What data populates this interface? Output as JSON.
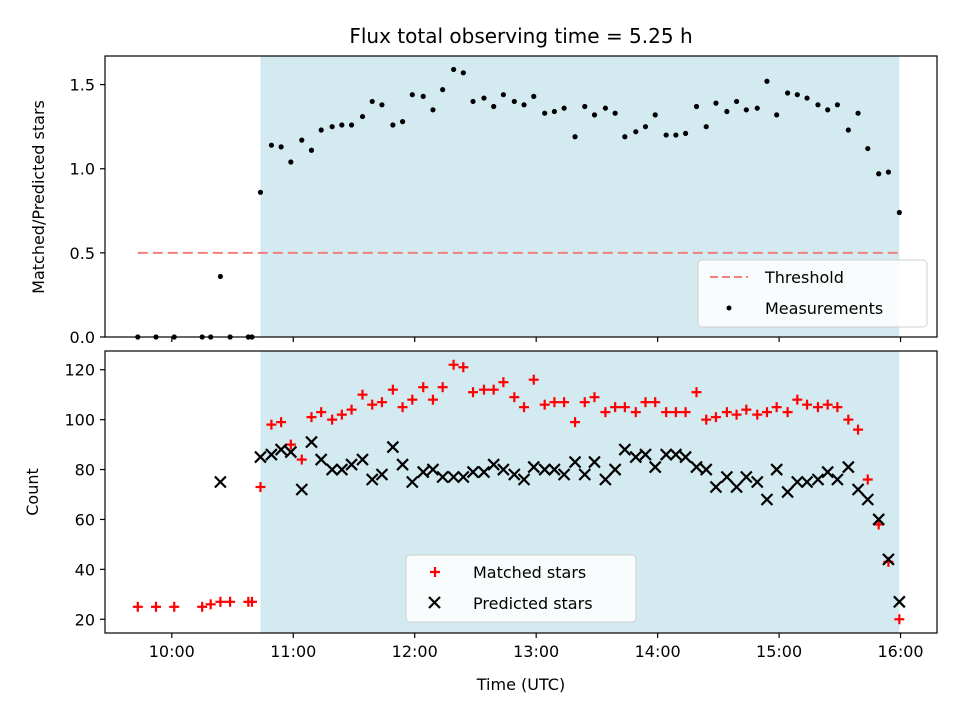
{
  "chart_data": [
    {
      "type": "scatter",
      "title": "Flux total observing time = 5.25 h",
      "ylabel": "Matched/Predicted stars",
      "xlabel": "",
      "x_unit": "hours UTC",
      "xlim": [
        9.45,
        16.3
      ],
      "ylim": [
        0,
        1.67
      ],
      "y_ticks": [
        0.0,
        0.5,
        1.0,
        1.5
      ],
      "y_tick_labels": [
        "0.0",
        "0.5",
        "1.0",
        "1.5"
      ],
      "x_ticks": [
        10,
        11,
        12,
        13,
        14,
        15,
        16
      ],
      "grid": false,
      "legend_position": "lower-right",
      "observing_window": {
        "start": 10.73,
        "end": 15.99,
        "color": "#d3eaf1"
      },
      "threshold": {
        "name": "Threshold",
        "value": 0.5,
        "x_range": [
          9.72,
          15.99
        ],
        "color": "#f08080",
        "style": "dashed"
      },
      "series": [
        {
          "name": "Measurements",
          "color": "#000000",
          "marker": "dot",
          "points": [
            [
              9.72,
              0.0
            ],
            [
              9.87,
              0.0
            ],
            [
              10.02,
              0.0
            ],
            [
              10.25,
              0.0
            ],
            [
              10.32,
              0.0
            ],
            [
              10.4,
              0.36
            ],
            [
              10.48,
              0.0
            ],
            [
              10.63,
              0.0
            ],
            [
              10.66,
              0.0
            ],
            [
              10.73,
              0.86
            ],
            [
              10.82,
              1.14
            ],
            [
              10.9,
              1.13
            ],
            [
              10.98,
              1.04
            ],
            [
              11.07,
              1.17
            ],
            [
              11.15,
              1.11
            ],
            [
              11.23,
              1.23
            ],
            [
              11.32,
              1.25
            ],
            [
              11.4,
              1.26
            ],
            [
              11.48,
              1.26
            ],
            [
              11.57,
              1.31
            ],
            [
              11.65,
              1.4
            ],
            [
              11.73,
              1.38
            ],
            [
              11.82,
              1.26
            ],
            [
              11.9,
              1.28
            ],
            [
              11.98,
              1.44
            ],
            [
              12.07,
              1.43
            ],
            [
              12.15,
              1.35
            ],
            [
              12.23,
              1.47
            ],
            [
              12.32,
              1.59
            ],
            [
              12.4,
              1.57
            ],
            [
              12.48,
              1.4
            ],
            [
              12.57,
              1.42
            ],
            [
              12.65,
              1.37
            ],
            [
              12.73,
              1.44
            ],
            [
              12.82,
              1.4
            ],
            [
              12.9,
              1.38
            ],
            [
              12.98,
              1.43
            ],
            [
              13.07,
              1.33
            ],
            [
              13.15,
              1.34
            ],
            [
              13.23,
              1.36
            ],
            [
              13.32,
              1.19
            ],
            [
              13.4,
              1.37
            ],
            [
              13.48,
              1.32
            ],
            [
              13.57,
              1.36
            ],
            [
              13.65,
              1.33
            ],
            [
              13.73,
              1.19
            ],
            [
              13.82,
              1.22
            ],
            [
              13.9,
              1.25
            ],
            [
              13.98,
              1.32
            ],
            [
              14.07,
              1.2
            ],
            [
              14.15,
              1.2
            ],
            [
              14.23,
              1.21
            ],
            [
              14.32,
              1.37
            ],
            [
              14.4,
              1.25
            ],
            [
              14.48,
              1.39
            ],
            [
              14.57,
              1.34
            ],
            [
              14.65,
              1.4
            ],
            [
              14.73,
              1.35
            ],
            [
              14.82,
              1.36
            ],
            [
              14.9,
              1.52
            ],
            [
              14.98,
              1.32
            ],
            [
              15.07,
              1.45
            ],
            [
              15.15,
              1.44
            ],
            [
              15.23,
              1.42
            ],
            [
              15.32,
              1.38
            ],
            [
              15.4,
              1.35
            ],
            [
              15.48,
              1.38
            ],
            [
              15.57,
              1.23
            ],
            [
              15.65,
              1.33
            ],
            [
              15.73,
              1.12
            ],
            [
              15.82,
              0.97
            ],
            [
              15.9,
              0.98
            ],
            [
              15.99,
              0.74
            ]
          ]
        }
      ]
    },
    {
      "type": "scatter",
      "title": "",
      "ylabel": "Count",
      "xlabel": "Time (UTC)",
      "x_unit": "hours UTC",
      "xlim": [
        9.45,
        16.3
      ],
      "ylim": [
        14.5,
        127.5
      ],
      "y_ticks": [
        20,
        40,
        60,
        80,
        100,
        120
      ],
      "y_tick_labels": [
        "20",
        "40",
        "60",
        "80",
        "100",
        "120"
      ],
      "x_ticks": [
        10,
        11,
        12,
        13,
        14,
        15,
        16
      ],
      "x_tick_labels": [
        "10:00",
        "11:00",
        "12:00",
        "13:00",
        "14:00",
        "15:00",
        "16:00"
      ],
      "grid": false,
      "legend_position": "lower-center",
      "observing_window": {
        "start": 10.73,
        "end": 15.99,
        "color": "#d3eaf1"
      },
      "series": [
        {
          "name": "Matched stars",
          "color": "#ff0000",
          "marker": "plus",
          "points": [
            [
              9.72,
              25
            ],
            [
              9.87,
              25
            ],
            [
              10.02,
              25
            ],
            [
              10.25,
              25
            ],
            [
              10.32,
              26
            ],
            [
              10.4,
              27
            ],
            [
              10.48,
              27
            ],
            [
              10.63,
              27
            ],
            [
              10.66,
              27
            ],
            [
              10.73,
              73
            ],
            [
              10.82,
              98
            ],
            [
              10.9,
              99
            ],
            [
              10.98,
              90
            ],
            [
              11.07,
              84
            ],
            [
              11.15,
              101
            ],
            [
              11.23,
              103
            ],
            [
              11.32,
              100
            ],
            [
              11.4,
              102
            ],
            [
              11.48,
              104
            ],
            [
              11.57,
              110
            ],
            [
              11.65,
              106
            ],
            [
              11.73,
              107
            ],
            [
              11.82,
              112
            ],
            [
              11.9,
              105
            ],
            [
              11.98,
              108
            ],
            [
              12.07,
              113
            ],
            [
              12.15,
              108
            ],
            [
              12.23,
              113
            ],
            [
              12.32,
              122
            ],
            [
              12.4,
              121
            ],
            [
              12.48,
              111
            ],
            [
              12.57,
              112
            ],
            [
              12.65,
              112
            ],
            [
              12.73,
              115
            ],
            [
              12.82,
              109
            ],
            [
              12.9,
              105
            ],
            [
              12.98,
              116
            ],
            [
              13.07,
              106
            ],
            [
              13.15,
              107
            ],
            [
              13.23,
              107
            ],
            [
              13.32,
              99
            ],
            [
              13.4,
              107
            ],
            [
              13.48,
              109
            ],
            [
              13.57,
              103
            ],
            [
              13.65,
              105
            ],
            [
              13.73,
              105
            ],
            [
              13.82,
              103
            ],
            [
              13.9,
              107
            ],
            [
              13.98,
              107
            ],
            [
              14.07,
              103
            ],
            [
              14.15,
              103
            ],
            [
              14.23,
              103
            ],
            [
              14.32,
              111
            ],
            [
              14.4,
              100
            ],
            [
              14.48,
              101
            ],
            [
              14.57,
              103
            ],
            [
              14.65,
              102
            ],
            [
              14.73,
              104
            ],
            [
              14.82,
              102
            ],
            [
              14.9,
              103
            ],
            [
              14.98,
              105
            ],
            [
              15.07,
              103
            ],
            [
              15.15,
              108
            ],
            [
              15.23,
              106
            ],
            [
              15.32,
              105
            ],
            [
              15.4,
              106
            ],
            [
              15.48,
              105
            ],
            [
              15.57,
              100
            ],
            [
              15.65,
              96
            ],
            [
              15.73,
              76
            ],
            [
              15.82,
              58
            ],
            [
              15.9,
              43
            ],
            [
              15.99,
              20
            ]
          ]
        },
        {
          "name": "Predicted stars",
          "color": "#000000",
          "marker": "cross",
          "points": [
            [
              10.4,
              75
            ],
            [
              10.73,
              85
            ],
            [
              10.82,
              86
            ],
            [
              10.9,
              88
            ],
            [
              10.98,
              87
            ],
            [
              11.07,
              72
            ],
            [
              11.15,
              91
            ],
            [
              11.23,
              84
            ],
            [
              11.32,
              80
            ],
            [
              11.4,
              80
            ],
            [
              11.48,
              82
            ],
            [
              11.57,
              84
            ],
            [
              11.65,
              76
            ],
            [
              11.73,
              78
            ],
            [
              11.82,
              89
            ],
            [
              11.9,
              82
            ],
            [
              11.98,
              75
            ],
            [
              12.07,
              79
            ],
            [
              12.15,
              80
            ],
            [
              12.23,
              77
            ],
            [
              12.32,
              77
            ],
            [
              12.4,
              77
            ],
            [
              12.48,
              79
            ],
            [
              12.57,
              79
            ],
            [
              12.65,
              82
            ],
            [
              12.73,
              80
            ],
            [
              12.82,
              78
            ],
            [
              12.9,
              76
            ],
            [
              12.98,
              81
            ],
            [
              13.07,
              80
            ],
            [
              13.15,
              80
            ],
            [
              13.23,
              78
            ],
            [
              13.32,
              83
            ],
            [
              13.4,
              78
            ],
            [
              13.48,
              83
            ],
            [
              13.57,
              76
            ],
            [
              13.65,
              80
            ],
            [
              13.73,
              88
            ],
            [
              13.82,
              85
            ],
            [
              13.9,
              86
            ],
            [
              13.98,
              81
            ],
            [
              14.07,
              86
            ],
            [
              14.15,
              86
            ],
            [
              14.23,
              85
            ],
            [
              14.32,
              81
            ],
            [
              14.4,
              80
            ],
            [
              14.48,
              73
            ],
            [
              14.57,
              77
            ],
            [
              14.65,
              73
            ],
            [
              14.73,
              77
            ],
            [
              14.82,
              75
            ],
            [
              14.9,
              68
            ],
            [
              14.98,
              80
            ],
            [
              15.07,
              71
            ],
            [
              15.15,
              75
            ],
            [
              15.23,
              75
            ],
            [
              15.32,
              76
            ],
            [
              15.4,
              79
            ],
            [
              15.48,
              76
            ],
            [
              15.57,
              81
            ],
            [
              15.65,
              72
            ],
            [
              15.73,
              68
            ],
            [
              15.82,
              60
            ],
            [
              15.9,
              44
            ],
            [
              15.99,
              27
            ]
          ]
        }
      ]
    }
  ]
}
